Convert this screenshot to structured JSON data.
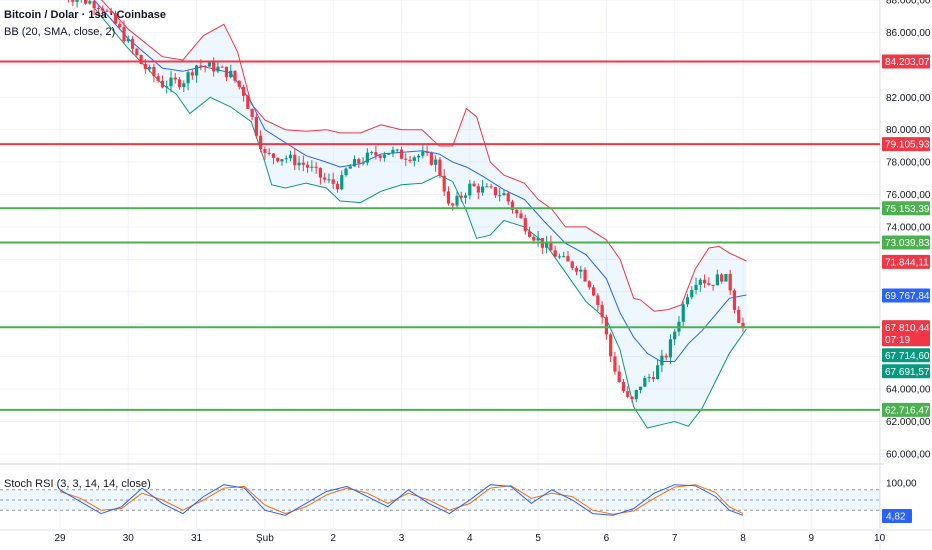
{
  "header": {
    "symbol_line": "Bitcoin / Dolar · 1sa · Coinbase",
    "indicator_line": "BB (20, SMA, close, 2)",
    "rsi_label": "Stoch RSI (3, 3, 14, 14, close)"
  },
  "chart_data": {
    "type": "candlestick",
    "x_tick_labels": [
      "29",
      "30",
      "31",
      "Şub",
      "2",
      "3",
      "4",
      "5",
      "6",
      "7",
      "8",
      "9",
      "10"
    ],
    "price_axis_labels": [
      "88.000,00",
      "86.000,00",
      "82.000,00",
      "80.000,00",
      "78.000,00",
      "76.000,00",
      "74.000,00",
      "64.000,00",
      "62.000,00",
      "60.000,00"
    ],
    "ylim": [
      59500,
      88000
    ],
    "horizontal_lines": [
      {
        "value": 84203.07,
        "label": "84.203,07",
        "color": "#f23645"
      },
      {
        "value": 79105.93,
        "label": "79.105,93",
        "color": "#f23645"
      },
      {
        "value": 75153.39,
        "label": "75.153,39",
        "color": "#4caf50"
      },
      {
        "value": 73039.83,
        "label": "73.039,83",
        "color": "#4caf50"
      },
      {
        "value": 67810.44,
        "label": "67.810,44",
        "color": "#4caf50"
      },
      {
        "value": 62716.47,
        "label": "62.716,47",
        "color": "#4caf50"
      }
    ],
    "price_tags": [
      {
        "value": 71844.11,
        "label": "71.844,11",
        "color": "#f23645"
      },
      {
        "value": 69767.84,
        "label": "69.767,84",
        "color": "#2962ff"
      },
      {
        "value": 67810.44,
        "label": "67.810,44",
        "color": "#f23645",
        "sub": "07:19"
      },
      {
        "value": 67714.6,
        "label": "67.714,60",
        "color": "#089981"
      },
      {
        "value": 67691.57,
        "label": "67.691,57",
        "color": "#089981"
      }
    ],
    "close_path": [
      [
        0,
        88400
      ],
      [
        0.6,
        87700
      ],
      [
        0.9,
        86000
      ],
      [
        1.2,
        84000
      ],
      [
        1.5,
        82800
      ],
      [
        1.8,
        83000
      ],
      [
        2.0,
        84000
      ],
      [
        2.3,
        83800
      ],
      [
        2.5,
        83400
      ],
      [
        2.7,
        82200
      ],
      [
        2.85,
        80200
      ],
      [
        3.0,
        78400
      ],
      [
        3.3,
        78300
      ],
      [
        3.6,
        77800
      ],
      [
        3.9,
        76800
      ],
      [
        4.1,
        76600
      ],
      [
        4.2,
        77600
      ],
      [
        4.5,
        78300
      ],
      [
        4.8,
        78700
      ],
      [
        5.0,
        78400
      ],
      [
        5.3,
        78400
      ],
      [
        5.5,
        78000
      ],
      [
        5.6,
        76900
      ],
      [
        5.7,
        75000
      ],
      [
        5.85,
        75800
      ],
      [
        6.0,
        76500
      ],
      [
        6.3,
        76200
      ],
      [
        6.5,
        76000
      ],
      [
        6.7,
        74700
      ],
      [
        6.9,
        73600
      ],
      [
        7.1,
        72800
      ],
      [
        7.4,
        71800
      ],
      [
        7.6,
        71500
      ],
      [
        7.8,
        70200
      ],
      [
        7.95,
        68300
      ],
      [
        8.05,
        66200
      ],
      [
        8.2,
        64300
      ],
      [
        8.35,
        63000
      ],
      [
        8.5,
        64300
      ],
      [
        8.7,
        65000
      ],
      [
        8.9,
        66300
      ],
      [
        9.0,
        67600
      ],
      [
        9.2,
        70100
      ],
      [
        9.35,
        71000
      ],
      [
        9.5,
        70500
      ],
      [
        9.7,
        71000
      ],
      [
        9.8,
        70500
      ],
      [
        9.9,
        68700
      ],
      [
        10.0,
        67810
      ]
    ],
    "bb_upper": [
      [
        0.5,
        88500
      ],
      [
        1.0,
        86200
      ],
      [
        1.5,
        84500
      ],
      [
        1.8,
        84300
      ],
      [
        2.1,
        85800
      ],
      [
        2.4,
        86500
      ],
      [
        2.6,
        84800
      ],
      [
        2.8,
        81600
      ],
      [
        3.0,
        80600
      ],
      [
        3.3,
        80000
      ],
      [
        3.6,
        79900
      ],
      [
        3.9,
        80000
      ],
      [
        4.1,
        79800
      ],
      [
        4.4,
        79800
      ],
      [
        4.7,
        80300
      ],
      [
        5.0,
        80000
      ],
      [
        5.3,
        80000
      ],
      [
        5.55,
        79000
      ],
      [
        5.75,
        79000
      ],
      [
        5.95,
        81300
      ],
      [
        6.1,
        80800
      ],
      [
        6.3,
        78000
      ],
      [
        6.5,
        77200
      ],
      [
        6.8,
        76700
      ],
      [
        7.0,
        75700
      ],
      [
        7.2,
        75100
      ],
      [
        7.4,
        74000
      ],
      [
        7.7,
        74000
      ],
      [
        8.0,
        73200
      ],
      [
        8.2,
        72000
      ],
      [
        8.4,
        69600
      ],
      [
        8.5,
        69500
      ],
      [
        8.7,
        68800
      ],
      [
        8.9,
        68900
      ],
      [
        9.1,
        69200
      ],
      [
        9.3,
        71400
      ],
      [
        9.5,
        72700
      ],
      [
        9.65,
        72800
      ],
      [
        9.8,
        72400
      ],
      [
        10.05,
        71900
      ]
    ],
    "bb_middle": [
      [
        0.5,
        88000
      ],
      [
        1.0,
        85600
      ],
      [
        1.5,
        83800
      ],
      [
        1.8,
        83600
      ],
      [
        2.1,
        83900
      ],
      [
        2.5,
        83500
      ],
      [
        2.8,
        81700
      ],
      [
        3.0,
        80000
      ],
      [
        3.3,
        79200
      ],
      [
        3.6,
        78400
      ],
      [
        3.9,
        78000
      ],
      [
        4.1,
        77700
      ],
      [
        4.4,
        77900
      ],
      [
        4.7,
        78500
      ],
      [
        5.0,
        78600
      ],
      [
        5.3,
        78700
      ],
      [
        5.55,
        78500
      ],
      [
        5.75,
        78000
      ],
      [
        5.95,
        77700
      ],
      [
        6.2,
        77100
      ],
      [
        6.5,
        76300
      ],
      [
        6.8,
        75700
      ],
      [
        7.1,
        74300
      ],
      [
        7.4,
        73000
      ],
      [
        7.7,
        72300
      ],
      [
        8.0,
        70800
      ],
      [
        8.2,
        68700
      ],
      [
        8.4,
        67200
      ],
      [
        8.6,
        66200
      ],
      [
        8.8,
        65700
      ],
      [
        9.0,
        65700
      ],
      [
        9.2,
        66800
      ],
      [
        9.4,
        67600
      ],
      [
        9.6,
        68600
      ],
      [
        9.8,
        69600
      ],
      [
        10.05,
        69800
      ]
    ],
    "bb_lower": [
      [
        0.5,
        87500
      ],
      [
        1.0,
        85000
      ],
      [
        1.5,
        82800
      ],
      [
        1.7,
        82200
      ],
      [
        1.9,
        81000
      ],
      [
        2.2,
        82000
      ],
      [
        2.5,
        81400
      ],
      [
        2.8,
        80500
      ],
      [
        3.0,
        78000
      ],
      [
        3.1,
        76600
      ],
      [
        3.3,
        76400
      ],
      [
        3.6,
        76700
      ],
      [
        3.9,
        76400
      ],
      [
        4.1,
        75600
      ],
      [
        4.4,
        75500
      ],
      [
        4.7,
        76200
      ],
      [
        5.0,
        76600
      ],
      [
        5.3,
        76700
      ],
      [
        5.55,
        77200
      ],
      [
        5.75,
        76800
      ],
      [
        5.95,
        75000
      ],
      [
        6.1,
        73300
      ],
      [
        6.3,
        73500
      ],
      [
        6.5,
        74400
      ],
      [
        6.8,
        74000
      ],
      [
        7.1,
        73000
      ],
      [
        7.4,
        71200
      ],
      [
        7.7,
        69400
      ],
      [
        8.0,
        68300
      ],
      [
        8.2,
        66400
      ],
      [
        8.4,
        62900
      ],
      [
        8.6,
        61600
      ],
      [
        8.8,
        61800
      ],
      [
        9.0,
        62000
      ],
      [
        9.2,
        61700
      ],
      [
        9.4,
        62800
      ],
      [
        9.6,
        64500
      ],
      [
        9.8,
        66200
      ],
      [
        10.05,
        67700
      ]
    ],
    "stoch_rsi": {
      "ticks": [
        "100,00"
      ],
      "current": "4,82",
      "k": [
        [
          0,
          80
        ],
        [
          0.3,
          45
        ],
        [
          0.6,
          10
        ],
        [
          0.9,
          30
        ],
        [
          1.2,
          85
        ],
        [
          1.5,
          40
        ],
        [
          1.8,
          10
        ],
        [
          2.1,
          60
        ],
        [
          2.4,
          95
        ],
        [
          2.7,
          85
        ],
        [
          3.0,
          20
        ],
        [
          3.3,
          5
        ],
        [
          3.6,
          40
        ],
        [
          3.9,
          75
        ],
        [
          4.2,
          90
        ],
        [
          4.5,
          60
        ],
        [
          4.8,
          30
        ],
        [
          5.1,
          80
        ],
        [
          5.4,
          40
        ],
        [
          5.7,
          10
        ],
        [
          6.0,
          50
        ],
        [
          6.3,
          95
        ],
        [
          6.6,
          90
        ],
        [
          6.9,
          40
        ],
        [
          7.2,
          80
        ],
        [
          7.5,
          50
        ],
        [
          7.8,
          10
        ],
        [
          8.1,
          5
        ],
        [
          8.4,
          25
        ],
        [
          8.7,
          70
        ],
        [
          9.0,
          95
        ],
        [
          9.3,
          92
        ],
        [
          9.6,
          60
        ],
        [
          9.8,
          20
        ],
        [
          10.0,
          5
        ]
      ],
      "d": [
        [
          0,
          75
        ],
        [
          0.3,
          55
        ],
        [
          0.6,
          20
        ],
        [
          0.9,
          25
        ],
        [
          1.2,
          70
        ],
        [
          1.5,
          50
        ],
        [
          1.8,
          20
        ],
        [
          2.1,
          50
        ],
        [
          2.4,
          85
        ],
        [
          2.7,
          90
        ],
        [
          3.0,
          35
        ],
        [
          3.3,
          10
        ],
        [
          3.6,
          30
        ],
        [
          3.9,
          65
        ],
        [
          4.2,
          85
        ],
        [
          4.5,
          70
        ],
        [
          4.8,
          40
        ],
        [
          5.1,
          70
        ],
        [
          5.4,
          50
        ],
        [
          5.7,
          20
        ],
        [
          6.0,
          40
        ],
        [
          6.3,
          85
        ],
        [
          6.6,
          92
        ],
        [
          6.9,
          55
        ],
        [
          7.2,
          70
        ],
        [
          7.5,
          60
        ],
        [
          7.8,
          20
        ],
        [
          8.1,
          8
        ],
        [
          8.4,
          18
        ],
        [
          8.7,
          55
        ],
        [
          9.0,
          88
        ],
        [
          9.3,
          95
        ],
        [
          9.6,
          72
        ],
        [
          9.8,
          30
        ],
        [
          10.0,
          10
        ]
      ]
    }
  },
  "colors": {
    "up": "#089981",
    "down": "#f23645",
    "bb_upper": "#f23645",
    "bb_middle": "#2962ff",
    "bb_lower": "#089981",
    "bb_fill": "#2196f3",
    "rsi_k": "#2962ff",
    "rsi_d": "#ff6d00"
  }
}
